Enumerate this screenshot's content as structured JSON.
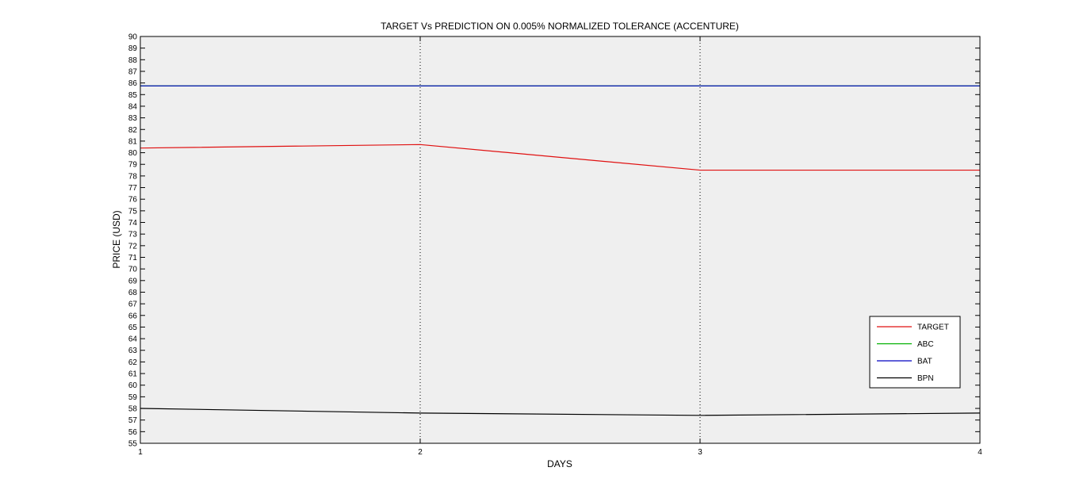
{
  "chart_data": {
    "type": "line",
    "title": "TARGET Vs PREDICTION ON 0.005% NORMALIZED TOLERANCE (ACCENTURE)",
    "xlabel": "DAYS",
    "ylabel": "PRICE (USD)",
    "x": [
      1,
      2,
      3,
      4
    ],
    "xlim": [
      1,
      4
    ],
    "ylim": [
      55,
      90
    ],
    "xticks": [
      1,
      2,
      3,
      4
    ],
    "yticks": [
      55,
      56,
      57,
      58,
      59,
      60,
      61,
      62,
      63,
      64,
      65,
      66,
      67,
      68,
      69,
      70,
      71,
      72,
      73,
      74,
      75,
      76,
      77,
      78,
      79,
      80,
      81,
      82,
      83,
      84,
      85,
      86,
      87,
      88,
      89,
      90
    ],
    "grid": "x-dotted",
    "legend_position": "bottom-right",
    "series": [
      {
        "name": "TARGET",
        "color": "#e01010",
        "values": [
          80.4,
          80.7,
          78.5,
          78.5
        ]
      },
      {
        "name": "ABC",
        "color": "#00b000",
        "values": [
          85.75,
          85.75,
          85.75,
          85.75
        ]
      },
      {
        "name": "BAT",
        "color": "#0000c0",
        "values": [
          85.75,
          85.75,
          85.75,
          85.75
        ]
      },
      {
        "name": "BPN",
        "color": "#000000",
        "values": [
          58.0,
          57.6,
          57.4,
          57.6
        ]
      }
    ]
  }
}
